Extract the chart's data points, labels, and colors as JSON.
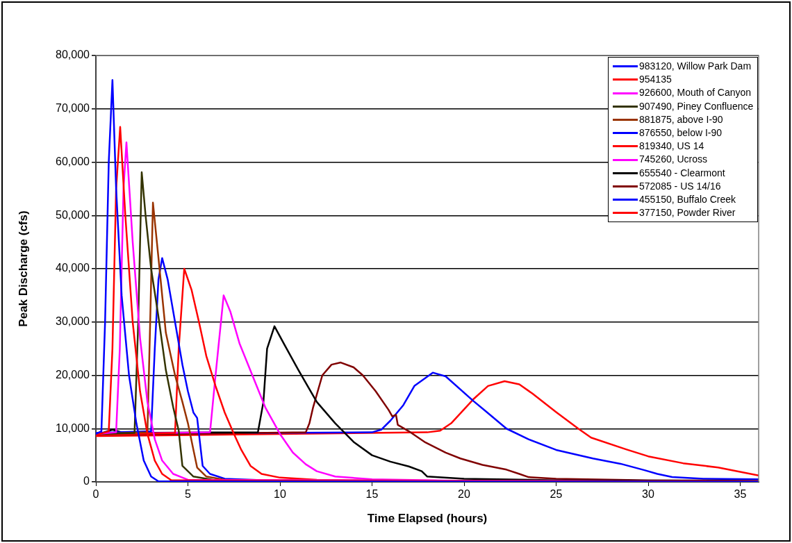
{
  "chart_data": {
    "type": "line",
    "xlabel": "Time Elapsed (hours)",
    "ylabel": "Peak Discharge (cfs)",
    "xlim": [
      0,
      36
    ],
    "xticks": [
      0,
      5,
      10,
      15,
      20,
      25,
      30,
      35
    ],
    "ylim": [
      0,
      80000
    ],
    "yticks": [
      0,
      {
        "value": 10000,
        "label": "10,000"
      },
      {
        "value": 20000,
        "label": "20,000"
      },
      {
        "value": 30000,
        "label": "30,000"
      },
      {
        "value": 40000,
        "label": "40,000"
      },
      {
        "value": 50000,
        "label": "50,000"
      },
      {
        "value": 60000,
        "label": "60,000"
      },
      {
        "value": 70000,
        "label": "70,000"
      },
      {
        "value": 80000,
        "label": "80,000"
      }
    ],
    "grid": "y",
    "legend": "top right",
    "series": [
      {
        "name": "983120, Willow Park Dam",
        "color": "#0000ff",
        "x": [
          0,
          0.3,
          0.5,
          0.7,
          0.9,
          1.1,
          1.4,
          1.8,
          2.2,
          2.6,
          3.0,
          3.4,
          36
        ],
        "values": [
          9000,
          9500,
          30000,
          60000,
          75400,
          55000,
          35000,
          20000,
          11000,
          4000,
          1000,
          100,
          0
        ]
      },
      {
        "name": "954135",
        "color": "#ff0000",
        "x": [
          0,
          0.7,
          0.9,
          1.1,
          1.32,
          1.6,
          2.0,
          2.4,
          2.8,
          3.2,
          3.6,
          4.1,
          36
        ],
        "values": [
          8800,
          9500,
          25000,
          55000,
          66600,
          50000,
          30000,
          17000,
          9000,
          4000,
          1500,
          300,
          0
        ]
      },
      {
        "name": "926600, Mouth of Canyon",
        "color": "#ff00ff",
        "x": [
          0,
          1.1,
          1.3,
          1.5,
          1.66,
          2.0,
          2.4,
          2.8,
          3.2,
          3.6,
          4.2,
          5.0,
          36
        ],
        "values": [
          9000,
          9300,
          25000,
          55000,
          63700,
          45000,
          27000,
          15000,
          8000,
          4000,
          1500,
          400,
          0
        ]
      },
      {
        "name": "907490, Piney Confluence",
        "color": "#333300",
        "x": [
          0,
          2.1,
          2.3,
          2.49,
          2.7,
          3.0,
          3.4,
          3.8,
          4.2,
          4.5,
          4.7,
          5.3,
          6.5,
          8,
          36
        ],
        "values": [
          9000,
          9200,
          30000,
          58100,
          50000,
          40000,
          31000,
          21000,
          14000,
          9600,
          3000,
          1000,
          300,
          100,
          0
        ]
      },
      {
        "name": "881875, above I-90",
        "color": "#993300",
        "x": [
          0,
          2.8,
          2.95,
          3.1,
          3.4,
          3.8,
          4.3,
          4.7,
          5.0,
          5.3,
          5.5,
          6,
          7,
          36
        ],
        "values": [
          9000,
          9300,
          30000,
          52400,
          42000,
          28000,
          20000,
          15000,
          11000,
          6000,
          2700,
          1000,
          400,
          0
        ]
      },
      {
        "name": "876550, below I-90",
        "color": "#0000ff",
        "x": [
          0,
          3.0,
          3.2,
          3.4,
          3.6,
          3.9,
          4.3,
          4.7,
          5.0,
          5.3,
          5.5,
          5.8,
          6.2,
          7,
          10,
          36
        ],
        "values": [
          9200,
          9500,
          25000,
          38000,
          42000,
          38000,
          30000,
          22000,
          17000,
          13000,
          12000,
          3000,
          1500,
          600,
          200,
          100
        ]
      },
      {
        "name": "819340, US 14",
        "color": "#ff0000",
        "x": [
          0,
          4.3,
          4.5,
          4.8,
          5.2,
          5.6,
          6.0,
          6.5,
          7.0,
          7.5,
          7.9,
          8.4,
          9,
          10,
          12,
          15,
          36
        ],
        "values": [
          8800,
          9200,
          25000,
          40000,
          36000,
          30000,
          23600,
          18000,
          13000,
          9000,
          6000,
          3000,
          1500,
          800,
          400,
          200,
          0
        ]
      },
      {
        "name": "745260, Ucross",
        "color": "#ff00ff",
        "x": [
          0,
          6.2,
          6.5,
          6.94,
          7.3,
          7.8,
          8.5,
          9.2,
          10,
          10.7,
          11.4,
          12,
          13,
          15,
          20,
          36
        ],
        "values": [
          9000,
          9300,
          20000,
          35000,
          32000,
          26000,
          20000,
          14000,
          9000,
          5500,
          3300,
          2000,
          1000,
          500,
          200,
          0
        ]
      },
      {
        "name": "655540 - Clearmont",
        "color": "#000000",
        "x": [
          0,
          0.9,
          1.5,
          8.8,
          9.1,
          9.3,
          9.7,
          10.2,
          11,
          12,
          13,
          14,
          15,
          16,
          17,
          17.7,
          18,
          20,
          25,
          30,
          36
        ],
        "values": [
          8800,
          9800,
          9200,
          9300,
          15000,
          25000,
          29200,
          26000,
          21000,
          15000,
          11000,
          7500,
          5000,
          3800,
          2900,
          2000,
          1000,
          600,
          300,
          200,
          100
        ]
      },
      {
        "name": "572085 - US 14/16",
        "color": "#800000",
        "x": [
          0,
          11.4,
          11.6,
          11.8,
          12.3,
          12.8,
          13.3,
          14,
          14.5,
          15.2,
          15.9,
          16.1,
          16.3,
          16.4,
          17,
          17.9,
          19,
          19.8,
          21,
          22.3,
          23,
          23.5,
          25,
          30,
          36
        ],
        "values": [
          8800,
          9300,
          11000,
          14000,
          20000,
          22000,
          22400,
          21500,
          20000,
          17000,
          13500,
          12300,
          12600,
          10700,
          9500,
          7400,
          5500,
          4400,
          3200,
          2300,
          1500,
          900,
          600,
          300,
          200
        ]
      },
      {
        "name": "455150, Buffalo Creek",
        "color": "#0000ff",
        "x": [
          0,
          15,
          15.5,
          16,
          16.7,
          17.3,
          18.3,
          19,
          20.5,
          21.2,
          22.3,
          23.5,
          25,
          27,
          28.5,
          29.8,
          30.5,
          31.3,
          33,
          36
        ],
        "values": [
          9000,
          9300,
          9800,
          11500,
          14400,
          18000,
          20500,
          19800,
          15200,
          13200,
          10000,
          8000,
          6000,
          4400,
          3400,
          2200,
          1500,
          900,
          600,
          500
        ]
      },
      {
        "name": "377150, Powder River",
        "color": "#ff0000",
        "x": [
          0,
          18,
          18.7,
          19.3,
          20.5,
          21.3,
          22.2,
          23,
          23.7,
          25,
          26.2,
          26.9,
          28.8,
          30,
          31.9,
          33.8,
          36
        ],
        "values": [
          8600,
          9300,
          9600,
          11000,
          15500,
          18000,
          18900,
          18300,
          16600,
          13100,
          10000,
          8300,
          6100,
          4800,
          3500,
          2700,
          1200
        ]
      }
    ]
  }
}
